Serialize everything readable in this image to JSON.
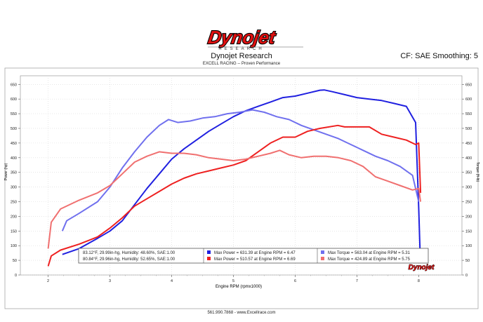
{
  "logo": {
    "text": "Dynojet",
    "subtext": "RESEARCH"
  },
  "header": {
    "title": "Dynojet Research",
    "subtitle": "EXCELL RACING  --  Proven Performance",
    "cf": "CF: SAE Smoothing: 5"
  },
  "footer": {
    "text": "561.990.7868  -  www.Excellrace.com"
  },
  "colors": {
    "blue_power": "#2020e0",
    "blue_torque": "#7070ee",
    "red_power": "#ee2020",
    "red_torque": "#f07070"
  },
  "chart_data": {
    "type": "line",
    "xlabel": "Engine RPM (rpmx1000)",
    "ylabel_left": "Power (hp)",
    "ylabel_right": "Torque (ft-lb)",
    "xlim": [
      1.55,
      8.7
    ],
    "ylim": [
      0,
      665
    ],
    "x_ticks": [
      "2",
      "3",
      "4",
      "5",
      "6",
      "7",
      "8"
    ],
    "y_ticks": [
      "0",
      "50",
      "100",
      "150",
      "200",
      "250",
      "300",
      "350",
      "400",
      "450",
      "500",
      "550",
      "600",
      "650"
    ],
    "legend_rows": [
      {
        "condition": "83.12°F, 29.99in-hg, Humidity: 48.60%, SAE:1.00",
        "power": "Max Power = 631.39 at Engine RPM = 6.47",
        "torque": "Max Torque = 563.04 at Engine RPM = 5.31"
      },
      {
        "condition": "80.84°F, 29.96in-hg, Humidity: 52.65%, SAE:1.00",
        "power": "Max Power = 510.57 at Engine RPM = 6.69",
        "torque": "Max Torque = 424.89 at Engine RPM = 5.75"
      }
    ],
    "series": [
      {
        "name": "Max Power = 631.39 at Engine RPM = 6.47",
        "color": "#2020e0",
        "x": [
          2.23,
          2.5,
          2.8,
          3.0,
          3.2,
          3.4,
          3.6,
          3.8,
          4.0,
          4.2,
          4.4,
          4.6,
          4.8,
          5.0,
          5.2,
          5.4,
          5.6,
          5.8,
          6.0,
          6.2,
          6.4,
          6.47,
          6.6,
          6.8,
          7.0,
          7.2,
          7.4,
          7.6,
          7.8,
          7.95,
          8.0,
          8.02
        ],
        "y": [
          70,
          90,
          125,
          150,
          185,
          240,
          295,
          345,
          395,
          430,
          460,
          490,
          515,
          540,
          560,
          575,
          590,
          605,
          610,
          620,
          630,
          631,
          625,
          615,
          605,
          600,
          595,
          585,
          575,
          520,
          230,
          90
        ]
      },
      {
        "name": "Max Torque = 563.04 at Engine RPM = 5.31",
        "color": "#7070ee",
        "x": [
          2.23,
          2.3,
          2.5,
          2.8,
          3.0,
          3.2,
          3.4,
          3.6,
          3.8,
          3.95,
          4.1,
          4.3,
          4.5,
          4.7,
          4.9,
          5.1,
          5.31,
          5.5,
          5.7,
          5.9,
          6.1,
          6.3,
          6.5,
          6.7,
          6.9,
          7.1,
          7.3,
          7.5,
          7.7,
          7.9,
          8.0
        ],
        "y": [
          150,
          185,
          210,
          250,
          300,
          365,
          420,
          470,
          510,
          530,
          520,
          525,
          535,
          540,
          550,
          555,
          563,
          555,
          540,
          530,
          510,
          495,
          480,
          465,
          445,
          425,
          405,
          390,
          370,
          340,
          250
        ]
      },
      {
        "name": "Max Power = 510.57 at Engine RPM = 6.69",
        "color": "#ee2020",
        "x": [
          2.0,
          2.05,
          2.2,
          2.5,
          2.8,
          3.0,
          3.2,
          3.4,
          3.6,
          3.8,
          4.0,
          4.2,
          4.4,
          4.6,
          4.8,
          5.0,
          5.2,
          5.4,
          5.6,
          5.8,
          6.0,
          6.2,
          6.4,
          6.69,
          6.8,
          7.0,
          7.2,
          7.4,
          7.6,
          7.8,
          7.95,
          8.0,
          8.03
        ],
        "y": [
          30,
          65,
          85,
          105,
          130,
          160,
          195,
          235,
          260,
          285,
          310,
          330,
          345,
          355,
          365,
          375,
          390,
          420,
          450,
          470,
          470,
          490,
          500,
          510,
          505,
          505,
          505,
          480,
          470,
          460,
          445,
          450,
          280
        ]
      },
      {
        "name": "Max Torque = 424.89 at Engine RPM = 5.75",
        "color": "#f07070",
        "x": [
          2.0,
          2.05,
          2.2,
          2.5,
          2.8,
          3.0,
          3.2,
          3.4,
          3.6,
          3.8,
          4.0,
          4.2,
          4.4,
          4.6,
          4.8,
          5.0,
          5.2,
          5.4,
          5.6,
          5.75,
          5.9,
          6.1,
          6.3,
          6.5,
          6.7,
          6.9,
          7.1,
          7.3,
          7.5,
          7.7,
          7.9,
          8.0,
          8.03
        ],
        "y": [
          90,
          180,
          225,
          255,
          280,
          305,
          345,
          385,
          405,
          420,
          415,
          415,
          410,
          400,
          395,
          390,
          395,
          405,
          415,
          425,
          410,
          400,
          405,
          405,
          400,
          390,
          370,
          335,
          320,
          305,
          290,
          295,
          250
        ]
      }
    ]
  }
}
